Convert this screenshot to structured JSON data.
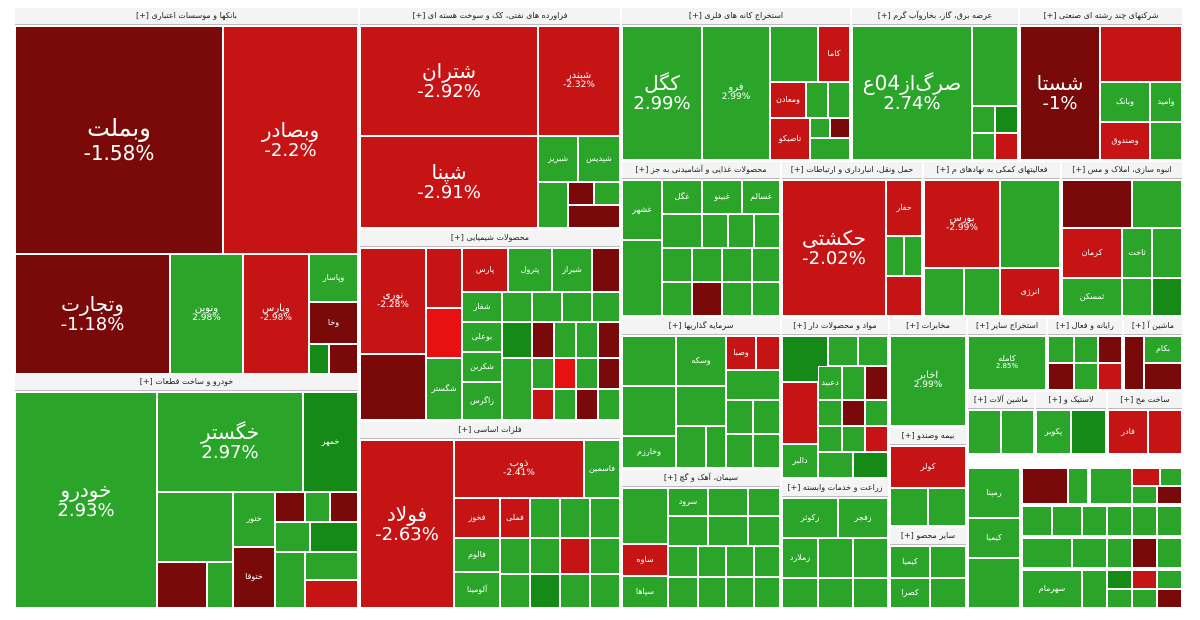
{
  "sectors": [
    {
      "title": "بانکها و موسسات اعتباری [+]"
    },
    {
      "title": "فراورده های نفتی، کک و سوخت هسته ای [+]"
    },
    {
      "title": "استخراج کانه های فلزی [+]"
    },
    {
      "title": "عرضه برق، گاز، بخاروآب گرم [+]"
    },
    {
      "title": "شرکتهای چند رشته ای صنعتی [+]"
    },
    {
      "title": "خودرو و ساخت قطعات [+]"
    },
    {
      "title": "محصولات شیمیایی [+]"
    },
    {
      "title": "محصولات غذایی و آشامیدنی به جز [+]"
    },
    {
      "title": "حمل ونقل، انبارداری و ارتباطات [+]"
    },
    {
      "title": "فعالیتهای کمکی به نهادهای م [+]"
    },
    {
      "title": "انبوه سازی، املاک و مس [+]"
    },
    {
      "title": "فلزات اساسی [+]"
    },
    {
      "title": "سرمایه گذاریها [+]"
    },
    {
      "title": "سیمان، آهک و گچ [+]"
    },
    {
      "title": "مواد و محصولات دار [+]"
    },
    {
      "title": "مخابرات [+]"
    },
    {
      "title": "استخراج سایر [+]"
    },
    {
      "title": "رایانه و فعال [+]"
    },
    {
      "title": "ماشین آ [+]"
    },
    {
      "title": "زراعت و خدمات وابسته [+]"
    },
    {
      "title": "سایر محصو [+]"
    },
    {
      "title": "بیمه وصندو [+]"
    },
    {
      "title": "ماشین آلات [+]"
    },
    {
      "title": "لاستیک و [+]"
    },
    {
      "title": "ساخت مح [+]"
    }
  ],
  "tiles": [
    {
      "sym": "وبملت",
      "chg": "-1.58%"
    },
    {
      "sym": "وبصادر",
      "chg": "-2.2%"
    },
    {
      "sym": "وتجارت",
      "chg": "-1.18%"
    },
    {
      "sym": "ونوین",
      "chg": "2.98%"
    },
    {
      "sym": "وپارس",
      "chg": "-2.98%"
    },
    {
      "sym": "وپاسار",
      "chg": ""
    },
    {
      "sym": "وخا",
      "chg": ""
    },
    {
      "sym": "شتران",
      "chg": "-2.92%"
    },
    {
      "sym": "شبندر",
      "chg": "-2.32%"
    },
    {
      "sym": "شپنا",
      "chg": "-2.91%"
    },
    {
      "sym": "شبریز",
      "chg": ""
    },
    {
      "sym": "شپدیس",
      "chg": ""
    },
    {
      "sym": "کگل",
      "chg": "2.99%"
    },
    {
      "sym": "فرو",
      "chg": "2.99%"
    },
    {
      "sym": "کاما",
      "chg": ""
    },
    {
      "sym": "ومعادن",
      "chg": ""
    },
    {
      "sym": "تاصیکو",
      "chg": ""
    },
    {
      "sym": "ثرق؟ا",
      "chg": ""
    },
    {
      "sym": "صرگ‌از04ع",
      "chg": "2.74%"
    },
    {
      "sym": "شستا",
      "chg": "-1%"
    },
    {
      "sym": "وبانک",
      "chg": ""
    },
    {
      "sym": "وامید",
      "chg": ""
    },
    {
      "sym": "وصندوق",
      "chg": ""
    },
    {
      "sym": "خودرو",
      "chg": "2.93%"
    },
    {
      "sym": "خگستر",
      "chg": "2.97%"
    },
    {
      "sym": "خمهر",
      "chg": ""
    },
    {
      "sym": "ختور",
      "chg": ""
    },
    {
      "sym": "ختوقا",
      "chg": ""
    },
    {
      "sym": "نوری",
      "chg": "-2.28%"
    },
    {
      "sym": "پارس",
      "chg": ""
    },
    {
      "sym": "شیراز",
      "chg": ""
    },
    {
      "sym": "پترول",
      "chg": ""
    },
    {
      "sym": "شفار",
      "chg": ""
    },
    {
      "sym": "بوعلی",
      "chg": ""
    },
    {
      "sym": "شکربن",
      "chg": ""
    },
    {
      "sym": "شگستر",
      "chg": ""
    },
    {
      "sym": "زاگرس",
      "chg": ""
    },
    {
      "sym": "غشهر",
      "chg": ""
    },
    {
      "sym": "غگل",
      "chg": ""
    },
    {
      "sym": "غبینو",
      "chg": ""
    },
    {
      "sym": "غسالم",
      "chg": ""
    },
    {
      "sym": "حکشتی",
      "chg": "-2.02%"
    },
    {
      "sym": "حفار",
      "chg": ""
    },
    {
      "sym": "بورس",
      "chg": "-2.99%"
    },
    {
      "sym": "انرژی",
      "chg": ""
    },
    {
      "sym": "کرمان",
      "chg": ""
    },
    {
      "sym": "ثاخت",
      "chg": ""
    },
    {
      "sym": "ثمسکن",
      "chg": ""
    },
    {
      "sym": "فولاد",
      "chg": "-2.63%"
    },
    {
      "sym": "ذوب",
      "chg": "-2.41%"
    },
    {
      "sym": "فخوز",
      "chg": ""
    },
    {
      "sym": "فملی",
      "chg": ""
    },
    {
      "sym": "فالوم",
      "chg": ""
    },
    {
      "sym": "فاسمین",
      "chg": ""
    },
    {
      "sym": "آلومینا",
      "chg": ""
    },
    {
      "sym": "وسکه",
      "chg": ""
    },
    {
      "sym": "وصبا",
      "chg": ""
    },
    {
      "sym": "وخارزم",
      "chg": ""
    },
    {
      "sym": "سهگمت",
      "chg": ""
    },
    {
      "sym": "ساوه",
      "chg": ""
    },
    {
      "sym": "سپاها",
      "chg": ""
    },
    {
      "sym": "سرود",
      "chg": ""
    },
    {
      "sym": "دالبر",
      "chg": ""
    },
    {
      "sym": "دعبید",
      "chg": ""
    },
    {
      "sym": "اخابر",
      "chg": "2.99%"
    },
    {
      "sym": "کامله",
      "chg": "2.85%"
    },
    {
      "sym": "کولر",
      "chg": ""
    },
    {
      "sym": "رمپنا",
      "chg": ""
    },
    {
      "sym": "کیمیا",
      "chg": ""
    },
    {
      "sym": "زکوثر",
      "chg": ""
    },
    {
      "sym": "زفجر",
      "chg": ""
    },
    {
      "sym": "زملارد",
      "chg": ""
    },
    {
      "sym": "کیمیا",
      "chg": ""
    },
    {
      "sym": "کصرا",
      "chg": ""
    },
    {
      "sym": "فادر",
      "chg": ""
    },
    {
      "sym": "بکام",
      "chg": ""
    },
    {
      "sym": "سهرمام",
      "chg": ""
    },
    {
      "sym": "پکویر",
      "chg": ""
    }
  ]
}
